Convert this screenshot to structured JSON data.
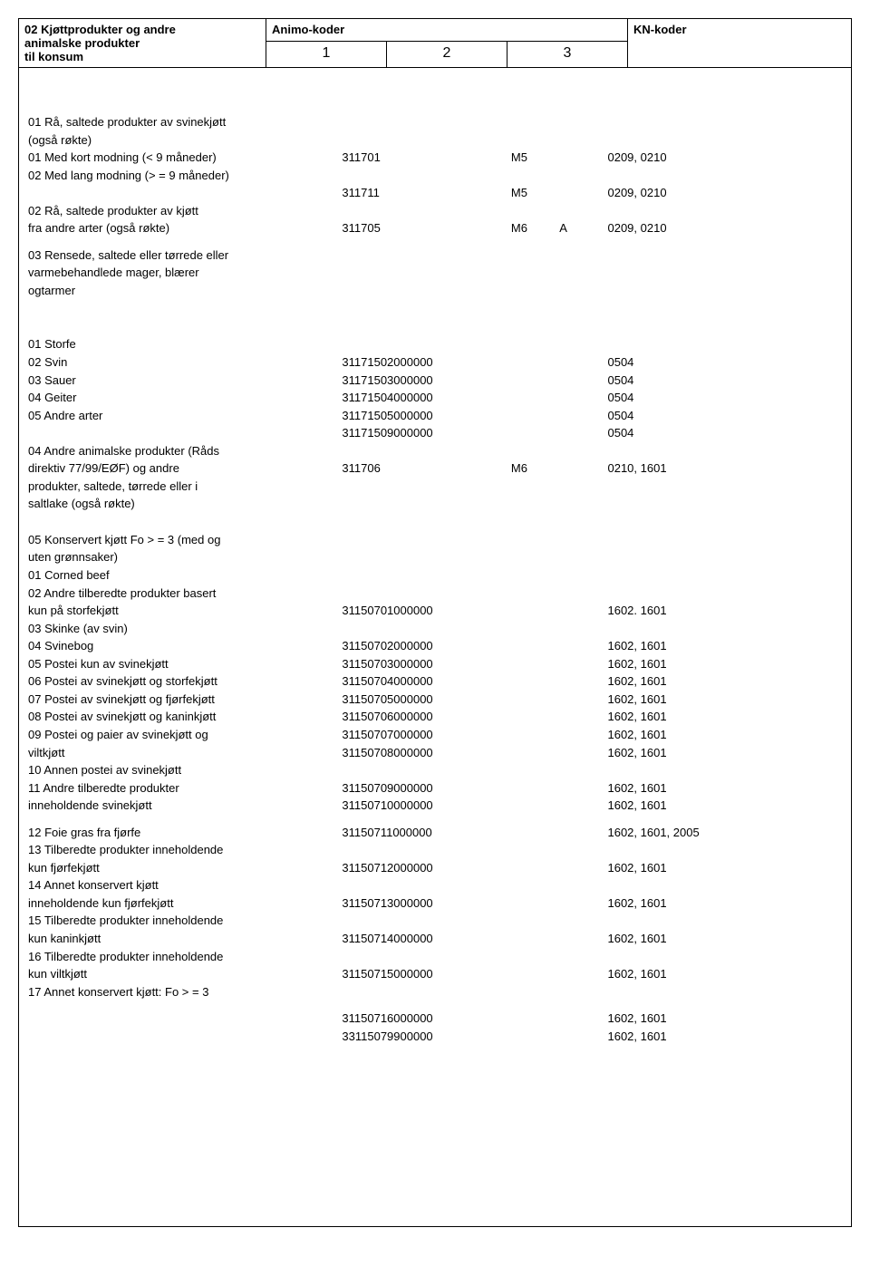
{
  "header": {
    "title_line1": "02 Kjøttprodukter og andre",
    "title_line2": "animalske produkter",
    "title_line3": "til konsum",
    "animo_label": "Animo-koder",
    "animo_col1": "1",
    "animo_col2": "2",
    "animo_col3": "3",
    "kn_label": "KN-koder"
  },
  "sec1": {
    "r1": "01 Rå, saltede produkter av svinekjøtt",
    "r2": "(også røkte)",
    "r3_desc": "01 Med kort modning (< 9 måneder)",
    "r3_a1": "311701",
    "r3_a2": "M5",
    "r3_kn": "0209, 0210",
    "r4": "02 Med lang modning (> = 9 måneder)",
    "r5_a1": "311711",
    "r5_a2": "M5",
    "r5_kn": "0209, 0210",
    "r6": "02 Rå, saltede produkter av kjøtt",
    "r7_desc": "fra andre arter (også røkte)",
    "r7_a1": "311705",
    "r7_a2": "M6",
    "r7_a3": "A",
    "r7_kn": "0209, 0210",
    "r8": "03 Rensede, saltede eller tørrede eller",
    "r9": "varmebehandlede mager, blærer",
    "r10": "ogtarmer"
  },
  "sec2": {
    "r1": "01 Storfe",
    "r2_desc": "02 Svin",
    "r2_a1": "31171502000000",
    "r2_kn": "0504",
    "r3_desc": "03 Sauer",
    "r3_a1": "31171503000000",
    "r3_kn": "0504",
    "r4_desc": "04 Geiter",
    "r4_a1": "31171504000000",
    "r4_kn": "0504",
    "r5_desc": "05 Andre arter",
    "r5_a1": "31171505000000",
    "r5_kn": "0504",
    "r6_a1": "31171509000000",
    "r6_kn": "0504",
    "r7": "04 Andre animalske produkter (Råds",
    "r8_desc": "direktiv 77/99/EØF) og andre",
    "r8_a1": "311706",
    "r8_a2": "M6",
    "r8_kn": "0210, 1601",
    "r9": "produkter, saltede, tørrede eller i",
    "r10": "saltlake (også røkte)"
  },
  "sec3": {
    "r1": "05 Konservert kjøtt Fo > = 3 (med  og",
    "r2": "uten grønnsaker)",
    "r3": "01 Corned beef",
    "r4": "02 Andre tilberedte produkter basert",
    "r5_desc": "kun på storfekjøtt",
    "r5_a1": "31150701000000",
    "r5_kn": "1602. 1601",
    "r6": "03 Skinke (av svin)",
    "r7_desc": "04 Svinebog",
    "r7_a1": "31150702000000",
    "r7_kn": "1602, 1601",
    "r8_desc": "05 Postei kun av svinekjøtt",
    "r8_a1": "31150703000000",
    "r8_kn": "1602, 1601",
    "r9_desc": "06 Postei av svinekjøtt og storfekjøtt",
    "r9_a1": "31150704000000",
    "r9_kn": "1602, 1601",
    "r10_desc": "07 Postei av svinekjøtt og fjørfekjøtt",
    "r10_a1": "31150705000000",
    "r10_kn": "1602, 1601",
    "r11_desc": "08 Postei av svinekjøtt og kaninkjøtt",
    "r11_a1": "31150706000000",
    "r11_kn": "1602, 1601",
    "r12_desc": "09 Postei og paier av svinekjøtt og",
    "r12_a1": "31150707000000",
    "r12_kn": "1602, 1601",
    "r13_desc": "viltkjøtt",
    "r13_a1": "31150708000000",
    "r13_kn": "1602, 1601",
    "r14": "10 Annen postei av svinekjøtt",
    "r15_desc": "11 Andre tilberedte produkter",
    "r15_a1": "31150709000000",
    "r15_kn": "1602, 1601",
    "r16_desc": "inneholdende svinekjøtt",
    "r16_a1": "31150710000000",
    "r16_kn": "1602, 1601"
  },
  "sec4": {
    "r1_desc": "12 Foie gras fra fjørfe",
    "r1_a1": "31150711000000",
    "r1_kn": "1602, 1601, 2005",
    "r2": "13 Tilberedte produkter inneholdende",
    "r3_desc": "kun fjørfekjøtt",
    "r3_a1": "31150712000000",
    "r3_kn": "1602, 1601",
    "r4": "14 Annet konservert kjøtt",
    "r5_desc": "inneholdende kun fjørfekjøtt",
    "r5_a1": "31150713000000",
    "r5_kn": "1602, 1601",
    "r6": "15 Tilberedte produkter inneholdende",
    "r7_desc": "kun kaninkjøtt",
    "r7_a1": "31150714000000",
    "r7_kn": "1602, 1601",
    "r8": "16 Tilberedte produkter inneholdende",
    "r9_desc": "kun viltkjøtt",
    "r9_a1": "31150715000000",
    "r9_kn": "1602, 1601",
    "r10": "17 Annet konservert kjøtt: Fo > = 3",
    "r11_a1": "31150716000000",
    "r11_kn": "1602, 1601",
    "r12_a1": "33115079900000",
    "r12_kn": "1602, 1601"
  }
}
